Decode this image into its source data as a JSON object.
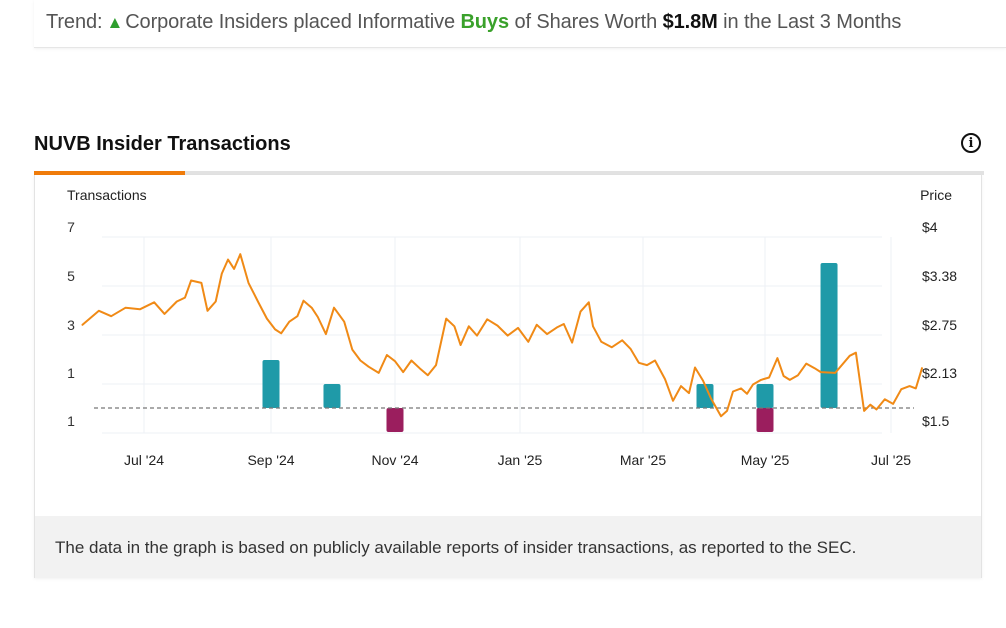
{
  "trend": {
    "label": "Trend:",
    "arrow": "▲",
    "text_before": "Corporate Insiders placed Informative",
    "buys_word": "Buys",
    "text_middle": "of Shares Worth",
    "amount": "$1.8M",
    "text_after": "in the Last 3 Months"
  },
  "section_title": "NUVB Insider Transactions",
  "info_icon": "info-icon",
  "footer_text": "The data in the graph is based on publicly available reports of insider transactions, as reported to the SEC.",
  "colors": {
    "price_line": "#f08a16",
    "buy_bar": "#1f9aa8",
    "sell_bar": "#9b1e5e",
    "tab_active": "#f07c0a"
  },
  "chart_data": {
    "type": "bar+line",
    "left_axis_label": "Transactions",
    "right_axis_label": "Price",
    "left_ticks": [
      "7",
      "5",
      "3",
      "1",
      "1"
    ],
    "right_ticks": [
      "$4",
      "$3.38",
      "$2.75",
      "$2.13",
      "$1.5"
    ],
    "x_ticks": [
      "Jul '24",
      "Sep '24",
      "Nov '24",
      "Jan '25",
      "Mar '25",
      "May '25",
      "Jul '25"
    ],
    "buys": [
      {
        "date": "2024-09-01",
        "count": 2
      },
      {
        "date": "2024-10-01",
        "count": 1
      },
      {
        "date": "2025-04-01",
        "count": 1
      },
      {
        "date": "2025-05-01",
        "count": 1
      },
      {
        "date": "2025-06-01",
        "count": 6
      }
    ],
    "sells": [
      {
        "date": "2024-11-01",
        "count": 1
      },
      {
        "date": "2025-05-01",
        "count": 1
      }
    ],
    "price": [
      {
        "date": "2024-06-01",
        "price": 2.74
      },
      {
        "date": "2024-06-09",
        "price": 2.92
      },
      {
        "date": "2024-06-15",
        "price": 2.85
      },
      {
        "date": "2024-06-22",
        "price": 2.96
      },
      {
        "date": "2024-06-29",
        "price": 2.94
      },
      {
        "date": "2024-07-06",
        "price": 3.03
      },
      {
        "date": "2024-07-11",
        "price": 2.88
      },
      {
        "date": "2024-07-17",
        "price": 3.04
      },
      {
        "date": "2024-07-21",
        "price": 3.09
      },
      {
        "date": "2024-07-24",
        "price": 3.31
      },
      {
        "date": "2024-07-29",
        "price": 3.28
      },
      {
        "date": "2024-08-01",
        "price": 2.92
      },
      {
        "date": "2024-08-05",
        "price": 3.04
      },
      {
        "date": "2024-08-08",
        "price": 3.4
      },
      {
        "date": "2024-08-11",
        "price": 3.58
      },
      {
        "date": "2024-08-14",
        "price": 3.46
      },
      {
        "date": "2024-08-17",
        "price": 3.65
      },
      {
        "date": "2024-08-21",
        "price": 3.28
      },
      {
        "date": "2024-08-26",
        "price": 3.02
      },
      {
        "date": "2024-08-30",
        "price": 2.82
      },
      {
        "date": "2024-09-03",
        "price": 2.68
      },
      {
        "date": "2024-09-06",
        "price": 2.63
      },
      {
        "date": "2024-09-10",
        "price": 2.78
      },
      {
        "date": "2024-09-14",
        "price": 2.85
      },
      {
        "date": "2024-09-17",
        "price": 3.05
      },
      {
        "date": "2024-09-21",
        "price": 2.96
      },
      {
        "date": "2024-09-24",
        "price": 2.84
      },
      {
        "date": "2024-09-28",
        "price": 2.62
      },
      {
        "date": "2024-10-02",
        "price": 2.96
      },
      {
        "date": "2024-10-07",
        "price": 2.78
      },
      {
        "date": "2024-10-11",
        "price": 2.42
      },
      {
        "date": "2024-10-15",
        "price": 2.28
      },
      {
        "date": "2024-10-19",
        "price": 2.2
      },
      {
        "date": "2024-10-24",
        "price": 2.12
      },
      {
        "date": "2024-10-28",
        "price": 2.35
      },
      {
        "date": "2024-11-01",
        "price": 2.27
      },
      {
        "date": "2024-11-05",
        "price": 2.13
      },
      {
        "date": "2024-11-09",
        "price": 2.28
      },
      {
        "date": "2024-11-13",
        "price": 2.18
      },
      {
        "date": "2024-11-17",
        "price": 2.09
      },
      {
        "date": "2024-11-21",
        "price": 2.22
      },
      {
        "date": "2024-11-26",
        "price": 2.82
      },
      {
        "date": "2024-11-30",
        "price": 2.72
      },
      {
        "date": "2024-12-03",
        "price": 2.48
      },
      {
        "date": "2024-12-07",
        "price": 2.72
      },
      {
        "date": "2024-12-11",
        "price": 2.6
      },
      {
        "date": "2024-12-16",
        "price": 2.81
      },
      {
        "date": "2024-12-21",
        "price": 2.73
      },
      {
        "date": "2024-12-26",
        "price": 2.6
      },
      {
        "date": "2024-12-31",
        "price": 2.7
      },
      {
        "date": "2025-01-05",
        "price": 2.52
      },
      {
        "date": "2025-01-09",
        "price": 2.74
      },
      {
        "date": "2025-01-14",
        "price": 2.62
      },
      {
        "date": "2025-01-19",
        "price": 2.71
      },
      {
        "date": "2025-01-22",
        "price": 2.75
      },
      {
        "date": "2025-01-26",
        "price": 2.51
      },
      {
        "date": "2025-01-30",
        "price": 2.91
      },
      {
        "date": "2025-02-03",
        "price": 3.03
      },
      {
        "date": "2025-02-05",
        "price": 2.72
      },
      {
        "date": "2025-02-09",
        "price": 2.52
      },
      {
        "date": "2025-02-14",
        "price": 2.45
      },
      {
        "date": "2025-02-19",
        "price": 2.54
      },
      {
        "date": "2025-02-23",
        "price": 2.43
      },
      {
        "date": "2025-02-27",
        "price": 2.25
      },
      {
        "date": "2025-03-03",
        "price": 2.22
      },
      {
        "date": "2025-03-07",
        "price": 2.28
      },
      {
        "date": "2025-03-12",
        "price": 2.04
      },
      {
        "date": "2025-03-16",
        "price": 1.76
      },
      {
        "date": "2025-03-20",
        "price": 1.95
      },
      {
        "date": "2025-03-24",
        "price": 1.86
      },
      {
        "date": "2025-03-27",
        "price": 2.19
      },
      {
        "date": "2025-03-31",
        "price": 2.02
      },
      {
        "date": "2025-04-04",
        "price": 1.79
      },
      {
        "date": "2025-04-09",
        "price": 1.56
      },
      {
        "date": "2025-04-12",
        "price": 1.63
      },
      {
        "date": "2025-04-15",
        "price": 1.88
      },
      {
        "date": "2025-04-19",
        "price": 1.92
      },
      {
        "date": "2025-04-22",
        "price": 1.85
      },
      {
        "date": "2025-04-25",
        "price": 1.97
      },
      {
        "date": "2025-04-29",
        "price": 2.03
      },
      {
        "date": "2025-05-03",
        "price": 2.06
      },
      {
        "date": "2025-05-07",
        "price": 2.31
      },
      {
        "date": "2025-05-10",
        "price": 2.08
      },
      {
        "date": "2025-05-13",
        "price": 2.03
      },
      {
        "date": "2025-05-17",
        "price": 2.09
      },
      {
        "date": "2025-05-21",
        "price": 2.24
      },
      {
        "date": "2025-05-25",
        "price": 2.18
      },
      {
        "date": "2025-05-28",
        "price": 2.13
      },
      {
        "date": "2025-06-04",
        "price": 2.12
      },
      {
        "date": "2025-06-11",
        "price": 2.34
      },
      {
        "date": "2025-06-14",
        "price": 2.38
      },
      {
        "date": "2025-06-18",
        "price": 1.63
      },
      {
        "date": "2025-06-21",
        "price": 1.71
      },
      {
        "date": "2025-06-24",
        "price": 1.65
      },
      {
        "date": "2025-06-28",
        "price": 1.78
      },
      {
        "date": "2025-07-02",
        "price": 1.72
      },
      {
        "date": "2025-07-06",
        "price": 1.91
      },
      {
        "date": "2025-07-10",
        "price": 1.95
      },
      {
        "date": "2025-07-13",
        "price": 1.92
      },
      {
        "date": "2025-07-16",
        "price": 2.18
      }
    ]
  }
}
